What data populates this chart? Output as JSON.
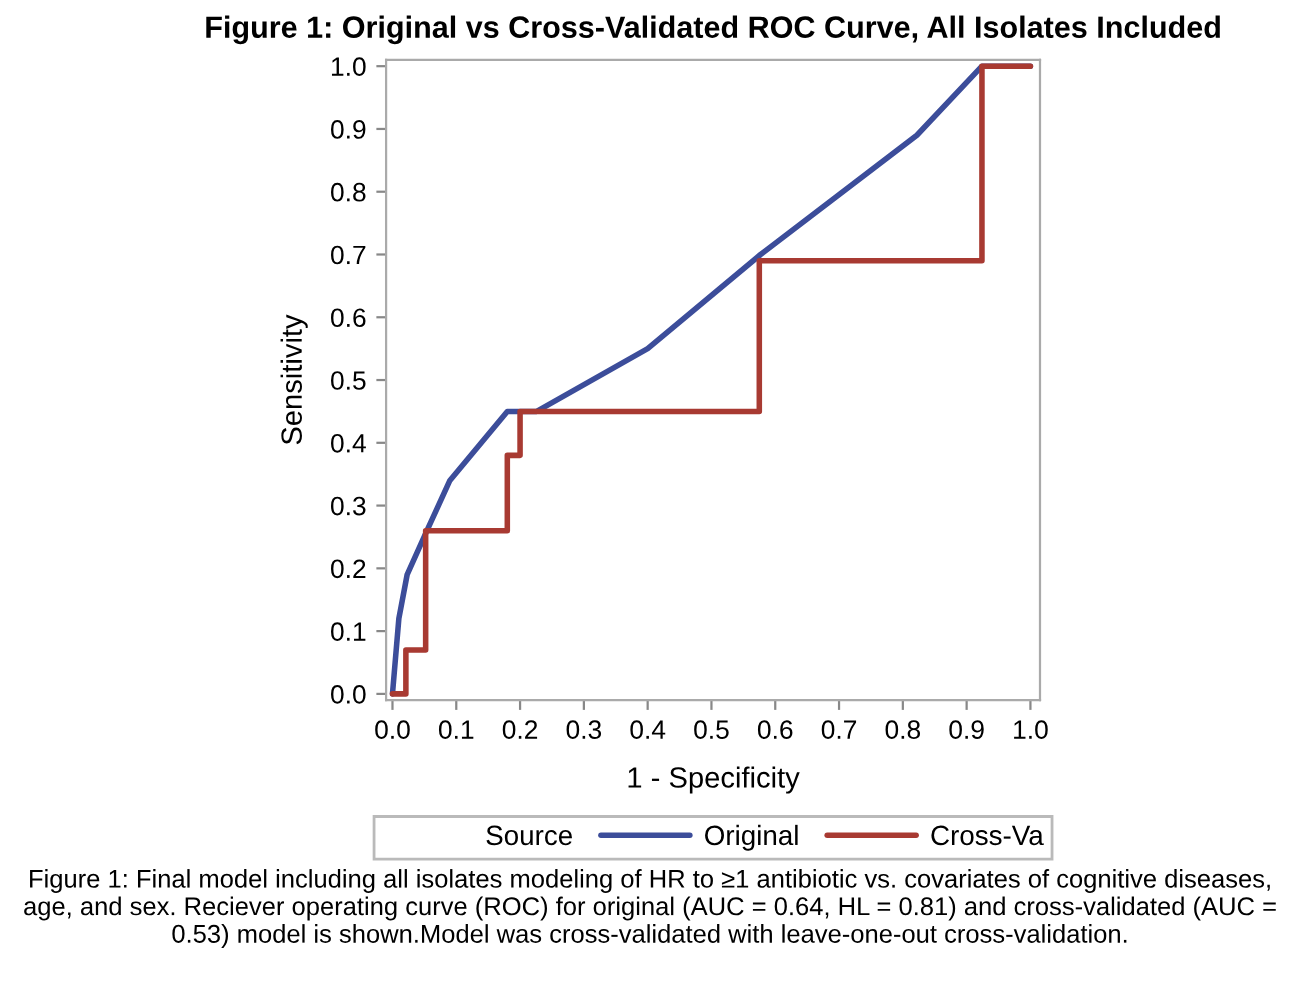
{
  "chart_data": {
    "type": "line",
    "title": "Figure 1: Original vs Cross-Validated ROC Curve, All Isolates Included",
    "xlabel": "1 - Specificity",
    "ylabel": "Sensitivity",
    "legend_title": "Source",
    "series": [
      {
        "name": "Original",
        "color": "#3c4d9a",
        "x": [
          0,
          0.01,
          0.023,
          0.054,
          0.09,
          0.18,
          0.226,
          0.4,
          0.577,
          0.822,
          0.924,
          1.0
        ],
        "values": [
          0,
          0.12,
          0.19,
          0.26,
          0.34,
          0.45,
          0.45,
          0.55,
          0.7,
          0.89,
          1.0,
          1.0
        ]
      },
      {
        "name": "Cross-Va",
        "color": "#a83a32",
        "x": [
          0,
          0.021,
          0.021,
          0.052,
          0.052,
          0.18,
          0.18,
          0.2,
          0.2,
          0.575,
          0.575,
          0.924,
          0.924,
          1.0
        ],
        "values": [
          0,
          0,
          0.07,
          0.07,
          0.26,
          0.26,
          0.38,
          0.38,
          0.45,
          0.45,
          0.69,
          0.69,
          1.0,
          1.0
        ]
      }
    ],
    "xlim": [
      -0.01,
      1.015
    ],
    "ylim": [
      -0.01,
      1.01
    ],
    "xticks": [
      {
        "value": 0,
        "label": "0.0"
      },
      {
        "value": 0.1,
        "label": "0.1"
      },
      {
        "value": 0.2,
        "label": "0.2"
      },
      {
        "value": 0.3,
        "label": "0.3"
      },
      {
        "value": 0.4,
        "label": "0.4"
      },
      {
        "value": 0.5,
        "label": "0.5"
      },
      {
        "value": 0.6,
        "label": "0.6"
      },
      {
        "value": 0.7,
        "label": "0.7"
      },
      {
        "value": 0.8,
        "label": "0.8"
      },
      {
        "value": 0.9,
        "label": "0.9"
      },
      {
        "value": 1,
        "label": "1.0"
      }
    ],
    "yticks": [
      {
        "value": 0,
        "label": "0.0"
      },
      {
        "value": 0.1,
        "label": "0.1"
      },
      {
        "value": 0.2,
        "label": "0.2"
      },
      {
        "value": 0.3,
        "label": "0.3"
      },
      {
        "value": 0.4,
        "label": "0.4"
      },
      {
        "value": 0.5,
        "label": "0.5"
      },
      {
        "value": 0.6,
        "label": "0.6"
      },
      {
        "value": 0.7,
        "label": "0.7"
      },
      {
        "value": 0.8,
        "label": "0.8"
      },
      {
        "value": 0.9,
        "label": "0.9"
      },
      {
        "value": 1,
        "label": "1.0"
      }
    ],
    "grid": false,
    "legend": "bottom",
    "line_style": "solid",
    "marker": "none",
    "annotations": [
      "Figure 1: Final model including all isolates modeling of HR to ≥1 antibiotic vs. covariates of cognitive diseases, age, and sex. Reciever operating curve (ROC) for original (AUC = 0.64, HL = 0.81) and cross-validated (AUC = 0.53) model is shown.Model was cross-validated with leave-one-out cross-validation."
    ]
  }
}
